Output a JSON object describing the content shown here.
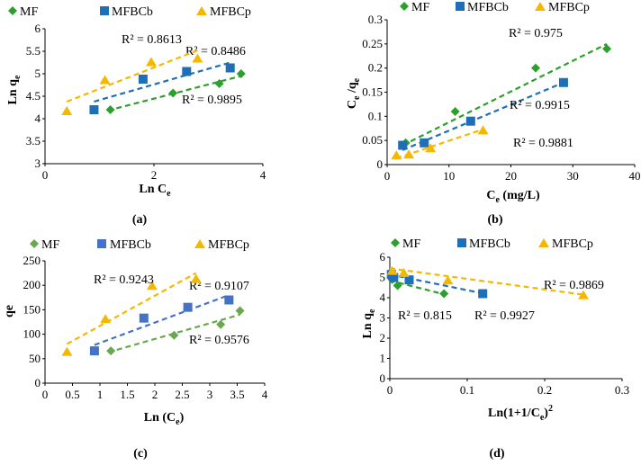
{
  "colors": {
    "MF": "#2ca02c",
    "MFBCb": "#1f6fb8",
    "MFBCp": "#f5b800",
    "MF_c": "#6aa84f",
    "MFBCb_c": "#4472c4"
  },
  "legend_labels": [
    "MF",
    "MFBCb",
    "MFBCp"
  ],
  "chart_data": [
    {
      "id": "a",
      "caption": "(a)",
      "type": "scatter",
      "xlabel": "Ln C",
      "xlabel_sub": "e",
      "ylabel": "Ln q",
      "ylabel_sub": "e",
      "xlim": [
        0,
        4
      ],
      "ylim": [
        3,
        6
      ],
      "xticks": [
        "0",
        "2",
        "4"
      ],
      "yticks": [
        "3",
        "3.5",
        "4",
        "4.5",
        "5",
        "5.5",
        "6"
      ],
      "series": [
        {
          "name": "MF",
          "x": [
            1.2,
            2.35,
            3.2,
            3.6
          ],
          "y": [
            4.2,
            4.57,
            4.78,
            5.0
          ],
          "trend": [
            [
              1.15,
              4.18
            ],
            [
              3.6,
              4.95
            ]
          ],
          "r2": "R² = 0.9895"
        },
        {
          "name": "MFBCb",
          "x": [
            0.9,
            1.8,
            2.6,
            3.4
          ],
          "y": [
            4.2,
            4.88,
            5.05,
            5.13
          ],
          "trend": [
            [
              0.9,
              4.38
            ],
            [
              3.4,
              5.25
            ]
          ],
          "r2": "R² = 0.8486"
        },
        {
          "name": "MFBCp",
          "x": [
            0.4,
            1.1,
            1.95,
            2.8
          ],
          "y": [
            4.18,
            4.87,
            5.27,
            5.35
          ],
          "trend": [
            [
              0.4,
              4.38
            ],
            [
              2.8,
              5.52
            ]
          ],
          "r2": "R² = 0.8613"
        }
      ]
    },
    {
      "id": "b",
      "caption": "(b)",
      "type": "scatter",
      "xlabel": "C",
      "xlabel_sub": "e",
      "xlabel_suffix": " (mg/L)",
      "ylabel": "C",
      "ylabel_sub": "e",
      "ylabel_mid": " /q",
      "ylabel_sub2": "e",
      "xlim": [
        0,
        40
      ],
      "ylim": [
        0,
        0.3
      ],
      "xticks": [
        "0",
        "10",
        "20",
        "30",
        "40"
      ],
      "yticks": [
        "0",
        "0.05",
        "0.1",
        "0.15",
        "0.2",
        "0.25",
        "0.3"
      ],
      "series": [
        {
          "name": "MF",
          "x": [
            3,
            11,
            24,
            35.5
          ],
          "y": [
            0.045,
            0.11,
            0.2,
            0.24
          ],
          "trend": [
            [
              2.5,
              0.04
            ],
            [
              35.5,
              0.25
            ]
          ],
          "r2": "R² = 0.975"
        },
        {
          "name": "MFBCb",
          "x": [
            2.5,
            6,
            13.5,
            28.5
          ],
          "y": [
            0.04,
            0.045,
            0.09,
            0.17
          ],
          "trend": [
            [
              2.5,
              0.03
            ],
            [
              28.5,
              0.17
            ]
          ],
          "r2": "R² = 0.9915"
        },
        {
          "name": "MFBCp",
          "x": [
            1.5,
            3.5,
            7,
            15.5
          ],
          "y": [
            0.02,
            0.022,
            0.035,
            0.072
          ],
          "trend": [
            [
              1.5,
              0.013
            ],
            [
              15.5,
              0.073
            ]
          ],
          "r2": "R² = 0.9881"
        }
      ]
    },
    {
      "id": "c",
      "caption": "(c)",
      "type": "scatter",
      "xlabel": "Ln (C",
      "xlabel_sub": "e",
      "xlabel_suffix": ")",
      "ylabel": "qe",
      "xlim": [
        0,
        4
      ],
      "ylim": [
        0,
        250
      ],
      "xticks": [
        "0",
        "0.5",
        "1",
        "1.5",
        "2",
        "2.5",
        "3",
        "3.5",
        "4"
      ],
      "yticks": [
        "0",
        "50",
        "100",
        "150",
        "200",
        "250"
      ],
      "series": [
        {
          "name": "MF",
          "x": [
            1.2,
            2.35,
            3.2,
            3.55
          ],
          "y": [
            66,
            98,
            120,
            148
          ],
          "trend": [
            [
              1.15,
              63
            ],
            [
              3.55,
              140
            ]
          ],
          "r2": "R² = 0.9576"
        },
        {
          "name": "MFBCb",
          "x": [
            0.9,
            1.8,
            2.6,
            3.35
          ],
          "y": [
            66,
            133,
            155,
            170
          ],
          "trend": [
            [
              0.9,
              78
            ],
            [
              3.35,
              180
            ]
          ],
          "r2": "R² = 0.9107"
        },
        {
          "name": "MFBCp",
          "x": [
            0.4,
            1.1,
            1.95,
            2.75
          ],
          "y": [
            65,
            132,
            200,
            214
          ],
          "trend": [
            [
              0.4,
              80
            ],
            [
              2.75,
              225
            ]
          ],
          "r2": "R² = 0.9243"
        }
      ]
    },
    {
      "id": "d",
      "caption": "(d)",
      "type": "scatter",
      "xlabel": "Ln(1+1/C",
      "xlabel_sub": "e",
      "xlabel_suffix": ")",
      "xlabel_sup": "2",
      "ylabel": "Ln q",
      "ylabel_sub": "e",
      "xlim": [
        0,
        0.3
      ],
      "ylim": [
        0,
        6
      ],
      "xticks": [
        "0",
        "0.1",
        "0.2",
        "0.3"
      ],
      "yticks": [
        "0",
        "1",
        "2",
        "3",
        "4",
        "5",
        "6"
      ],
      "series": [
        {
          "name": "MF",
          "x": [
            0.003,
            0.01,
            0.07
          ],
          "y": [
            4.9,
            4.6,
            4.2
          ],
          "trend": [
            [
              0.0,
              4.85
            ],
            [
              0.072,
              4.15
            ]
          ],
          "r2": "R² = 0.815"
        },
        {
          "name": "MFBCb",
          "x": [
            0.002,
            0.005,
            0.025,
            0.12
          ],
          "y": [
            5.15,
            5.0,
            4.88,
            4.2
          ],
          "trend": [
            [
              0.0,
              5.15
            ],
            [
              0.122,
              4.2
            ]
          ],
          "r2": "R² = 0.9927"
        },
        {
          "name": "MFBCp",
          "x": [
            0.003,
            0.018,
            0.075,
            0.25
          ],
          "y": [
            5.35,
            5.25,
            4.88,
            4.15
          ],
          "trend": [
            [
              0.0,
              5.45
            ],
            [
              0.25,
              4.15
            ]
          ],
          "r2": "R² = 0.9869"
        }
      ]
    }
  ]
}
